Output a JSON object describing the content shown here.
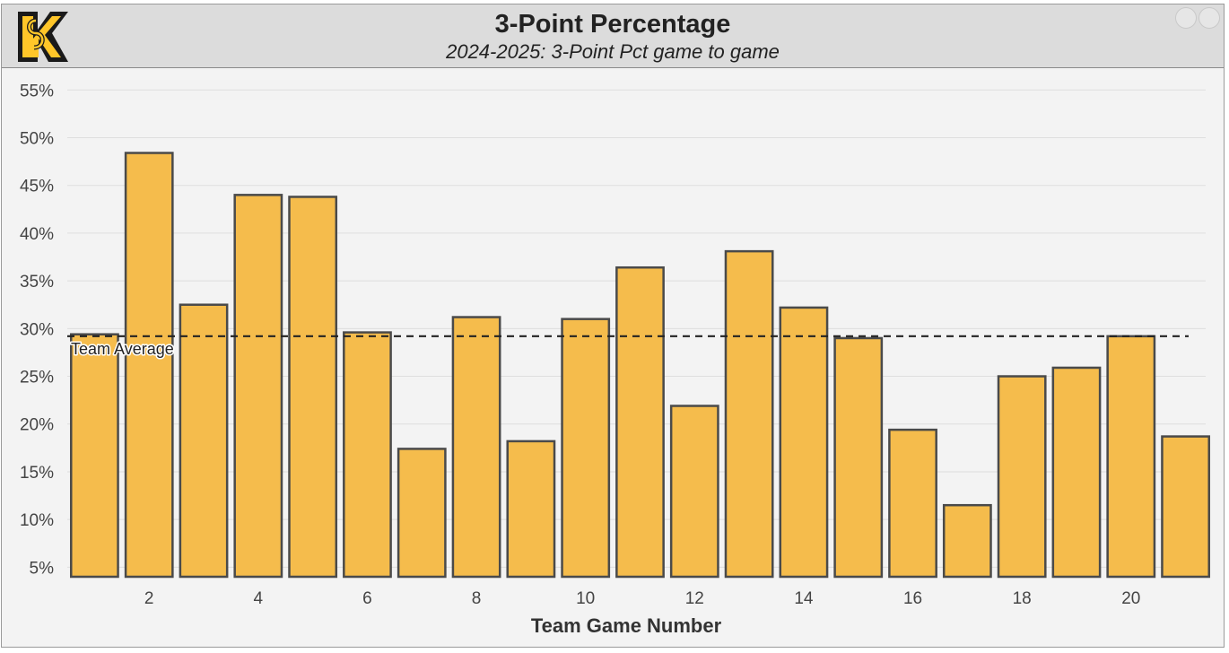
{
  "header": {
    "title": "3-Point Percentage",
    "subtitle": "2024-2025: 3-Point Pct game to game",
    "logo_name": "ks-logo-icon",
    "brand_color": "#FFC629"
  },
  "chart_data": {
    "type": "bar",
    "categories": [
      1,
      2,
      3,
      4,
      5,
      6,
      7,
      8,
      9,
      10,
      11,
      12,
      13,
      14,
      15,
      16,
      17,
      18,
      19,
      20,
      21
    ],
    "values": [
      29.4,
      48.4,
      32.5,
      44.0,
      43.8,
      29.6,
      17.4,
      31.2,
      18.2,
      31.0,
      36.4,
      21.9,
      38.1,
      32.2,
      29.0,
      19.4,
      11.5,
      25.0,
      25.9,
      29.2,
      18.7
    ],
    "x_tick_labels": [
      "2",
      "4",
      "6",
      "8",
      "10",
      "12",
      "14",
      "16",
      "18",
      "20"
    ],
    "x_tick_values": [
      2,
      4,
      6,
      8,
      10,
      12,
      14,
      16,
      18,
      20
    ],
    "y_tick_labels": [
      "5%",
      "10%",
      "15%",
      "20%",
      "25%",
      "30%",
      "35%",
      "40%",
      "45%",
      "50%",
      "55%"
    ],
    "y_tick_values": [
      5,
      10,
      15,
      20,
      25,
      30,
      35,
      40,
      45,
      50,
      55
    ],
    "ylim": [
      4,
      57
    ],
    "xlabel": "Team Game Number",
    "ylabel": "",
    "reference_line": {
      "label": "Team Average",
      "value": 29.2,
      "style": "dashed"
    },
    "grid": true,
    "bar_color": "#F5BC4C",
    "bar_edge_color": "#4a4a4a"
  }
}
